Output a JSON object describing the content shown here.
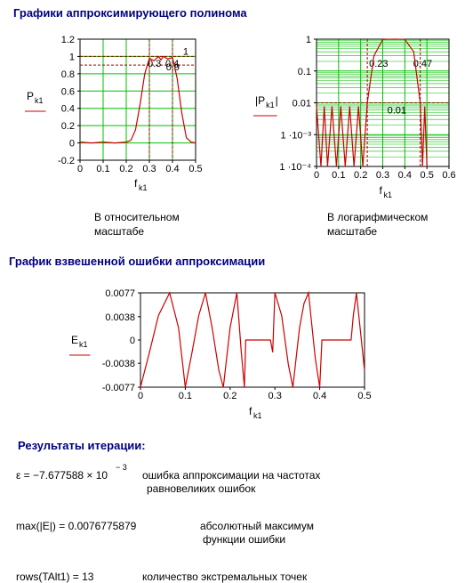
{
  "header": {
    "title": "Графики аппроксимирующего полинома"
  },
  "captions": [
    [
      "В относительном",
      "масштабе"
    ],
    [
      "В логарифмическом",
      "масштабе"
    ]
  ],
  "section2": {
    "title": "График взвешенной ошибки аппроксимации"
  },
  "results": {
    "title": "Результаты итерации:",
    "items": [
      {
        "formula": "ε = −7.677588 × 10",
        "formula_sup": "− 3",
        "note": [
          "ошибка аппроксимации  на  частотах",
          "равновеликих ошибок"
        ]
      },
      {
        "formula": "max(|E|) = 0.0076775879",
        "note": [
          "абсолютный максимум",
          "функции ошибки"
        ]
      },
      {
        "formula": "rows(TAlt1) = 13",
        "note": [
          "количество экстремальных точек"
        ]
      }
    ]
  },
  "chart_data": [
    {
      "type": "line",
      "xlabel": "f",
      "xlabel_sub": "k1",
      "ylabel": "P",
      "ylabel_sub": "k1",
      "log_y": false,
      "grid": true,
      "color": "#cc0000",
      "grid_color": "#00c000",
      "xlim": [
        0,
        0.5
      ],
      "xticks": [
        0,
        0.1,
        0.2,
        0.3,
        0.4,
        0.5
      ],
      "ylim": [
        -0.2,
        1.2
      ],
      "yticks": [
        -0.2,
        0,
        0.2,
        0.4,
        0.6,
        0.8,
        1,
        1.2
      ],
      "hlines": [
        1,
        0.9
      ],
      "vlines": [
        0.3,
        0.4
      ],
      "x": [
        0,
        0.05,
        0.1,
        0.15,
        0.2,
        0.22,
        0.24,
        0.26,
        0.28,
        0.3,
        0.32,
        0.34,
        0.35,
        0.36,
        0.38,
        0.4,
        0.42,
        0.44,
        0.46,
        0.48,
        0.5
      ],
      "values": [
        0.01,
        0,
        0.01,
        0,
        0.01,
        0.03,
        0.15,
        0.45,
        0.8,
        0.98,
        0.95,
        1,
        0.96,
        1,
        0.97,
        0.99,
        0.75,
        0.35,
        0.06,
        0.01,
        0
      ]
    },
    {
      "type": "line",
      "xlabel": "f",
      "xlabel_sub": "k1",
      "ylabel": "|P",
      "ylabel_sub": "k1",
      "ylabel_end": "|",
      "log_y": true,
      "grid": true,
      "color": "#cc0000",
      "grid_color": "#00c000",
      "xlim": [
        0,
        0.6
      ],
      "xticks": [
        0,
        0.1,
        0.2,
        0.3,
        0.4,
        0.5,
        0.6
      ],
      "ylim": [
        0.0001,
        1
      ],
      "yticks": [
        1,
        0.1,
        0.01,
        {
          "value": 0.001,
          "label": "1 ·10⁻³"
        },
        {
          "value": 0.0001,
          "label": "1 ·10⁻⁴"
        }
      ],
      "hlines": [
        0.01
      ],
      "vlines": [
        0.23,
        0.47
      ],
      "x": [
        0,
        0.02,
        0.035,
        0.05,
        0.07,
        0.09,
        0.11,
        0.13,
        0.15,
        0.17,
        0.19,
        0.21,
        0.23,
        0.26,
        0.3,
        0.35,
        0.4,
        0.44,
        0.47,
        0.48,
        0.49,
        0.5
      ],
      "values": [
        0.0077,
        0.0001,
        0.0077,
        0.0001,
        0.0077,
        0.0001,
        0.0077,
        0.0001,
        0.0077,
        0.0001,
        0.0077,
        0.0001,
        0.01,
        0.3,
        0.98,
        1,
        0.99,
        0.4,
        0.01,
        0.0001,
        0.0077,
        0.0001
      ]
    },
    {
      "type": "line",
      "xlabel": "f",
      "xlabel_sub": "k1",
      "ylabel": "E",
      "ylabel_sub": "k1",
      "log_y": false,
      "grid": false,
      "color": "#cc0000",
      "xlim": [
        0,
        0.5
      ],
      "xticks": [
        0,
        0.1,
        0.2,
        0.3,
        0.4,
        0.5
      ],
      "ylim": [
        -0.0077,
        0.0077
      ],
      "yticks": [
        -0.0077,
        -0.0038,
        0,
        0.0038,
        0.0077
      ],
      "x": [
        0,
        0.02,
        0.04,
        0.065,
        0.085,
        0.1,
        0.115,
        0.13,
        0.145,
        0.16,
        0.175,
        0.185,
        0.2,
        0.215,
        0.225,
        0.232,
        0.235,
        0.29,
        0.295,
        0.3,
        0.315,
        0.33,
        0.34,
        0.355,
        0.365,
        0.375,
        0.39,
        0.4,
        0.405,
        0.47,
        0.475,
        0.482,
        0.49,
        0.5
      ],
      "values": [
        -0.0077,
        -0.002,
        0.004,
        0.0077,
        0.002,
        -0.0077,
        -0.002,
        0.004,
        0.0077,
        0.002,
        -0.005,
        -0.0077,
        0.002,
        0.0077,
        -0.002,
        -0.0077,
        0,
        0,
        -0.002,
        0.0077,
        0.004,
        -0.004,
        -0.0077,
        0.002,
        0.006,
        0.0077,
        -0.003,
        -0.0077,
        0,
        0,
        0.004,
        0.0077,
        0.002,
        -0.005
      ]
    }
  ]
}
